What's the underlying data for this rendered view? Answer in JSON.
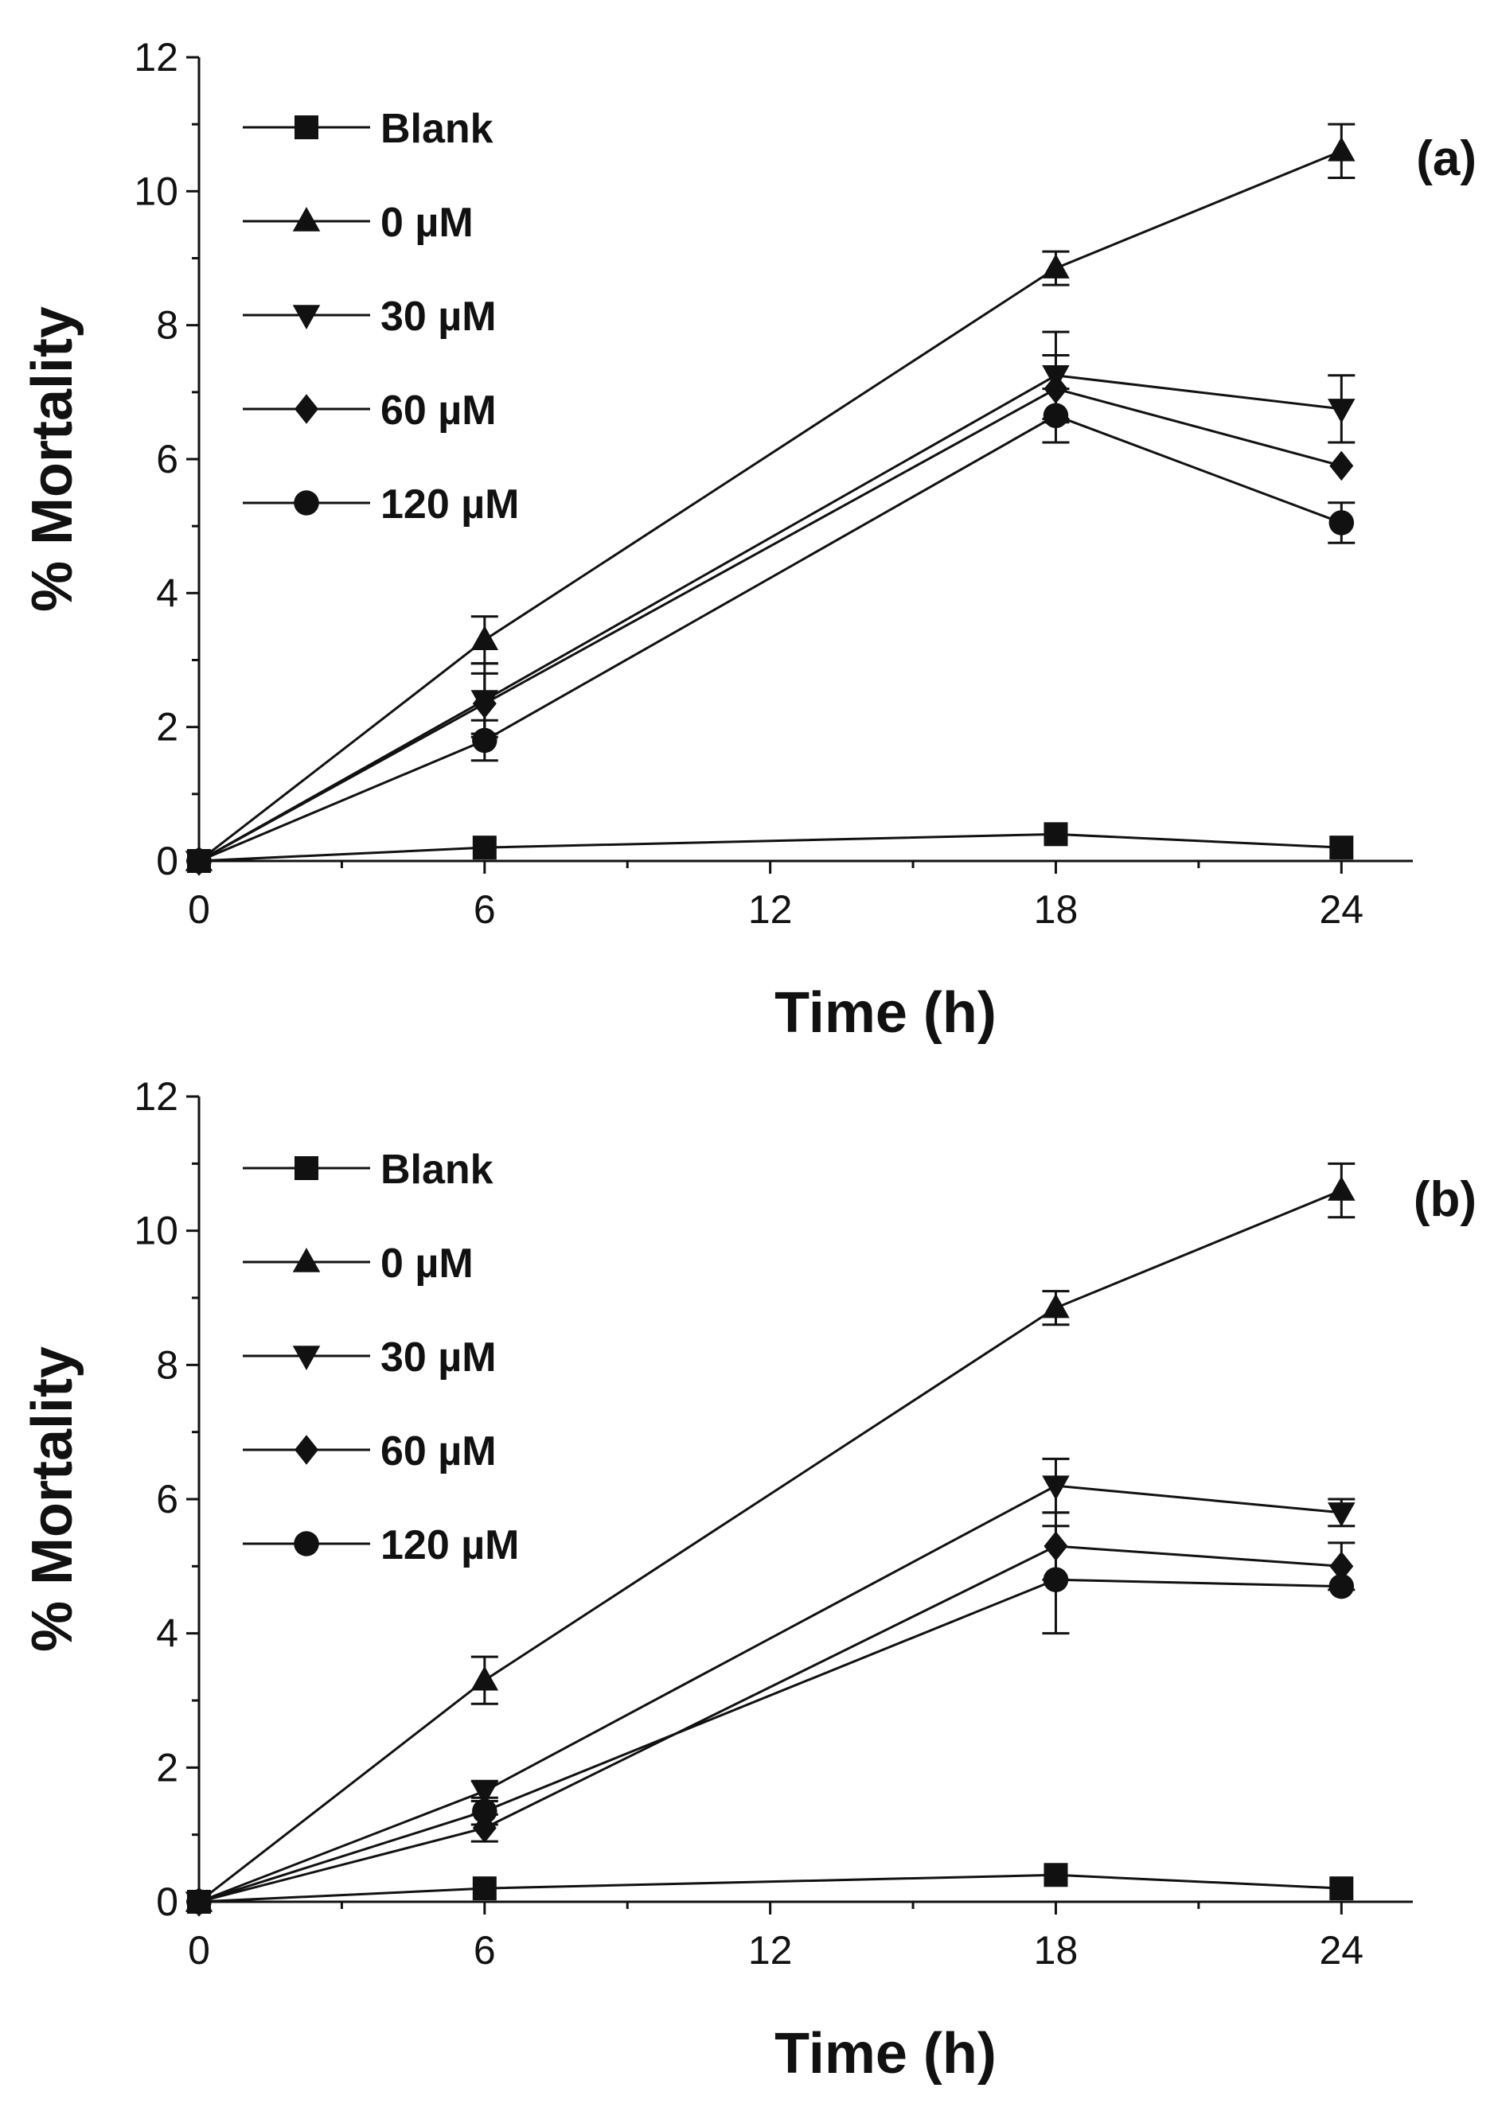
{
  "chart_data": [
    {
      "type": "line",
      "panel_label": "(a)",
      "xlabel": "Time (h)",
      "ylabel": "% Mortality",
      "x": [
        0,
        6,
        18,
        24
      ],
      "xlim": [
        0,
        25.5
      ],
      "ylim": [
        0,
        12
      ],
      "xticks": [
        "0",
        "6",
        "12",
        "18",
        "24"
      ],
      "yticks": [
        "0",
        "2",
        "4",
        "6",
        "8",
        "10",
        "12"
      ],
      "grid": false,
      "legend_position": "top-left",
      "series": [
        {
          "name": "Blank",
          "marker": "square",
          "values": [
            0,
            0.2,
            0.4,
            0.2
          ],
          "errors": [
            0,
            0,
            0,
            0
          ]
        },
        {
          "name": "0 µM",
          "marker": "triangle-up",
          "values": [
            0,
            3.3,
            8.85,
            10.6
          ],
          "errors": [
            0,
            0.35,
            0.25,
            0.4
          ]
        },
        {
          "name": "30 µM",
          "marker": "triangle-down",
          "values": [
            0,
            2.4,
            7.25,
            6.75
          ],
          "errors": [
            0,
            0.55,
            0.65,
            0.5
          ]
        },
        {
          "name": "60 µM",
          "marker": "diamond",
          "values": [
            0,
            2.35,
            7.05,
            5.9
          ],
          "errors": [
            0,
            0.45,
            0.5,
            0
          ]
        },
        {
          "name": "120 µM",
          "marker": "circle",
          "values": [
            0,
            1.8,
            6.65,
            5.05
          ],
          "errors": [
            0,
            0.3,
            0.4,
            0.3
          ]
        }
      ]
    },
    {
      "type": "line",
      "panel_label": "(b)",
      "xlabel": "Time (h)",
      "ylabel": "% Mortality",
      "x": [
        0,
        6,
        18,
        24
      ],
      "xlim": [
        0,
        25.5
      ],
      "ylim": [
        0,
        12
      ],
      "xticks": [
        "0",
        "6",
        "12",
        "18",
        "24"
      ],
      "yticks": [
        "0",
        "2",
        "4",
        "6",
        "8",
        "10",
        "12"
      ],
      "grid": false,
      "legend_position": "top-left",
      "series": [
        {
          "name": "Blank",
          "marker": "square",
          "values": [
            0,
            0.2,
            0.4,
            0.2
          ],
          "errors": [
            0,
            0,
            0,
            0
          ]
        },
        {
          "name": "0 µM",
          "marker": "triangle-up",
          "values": [
            0,
            3.3,
            8.85,
            10.6
          ],
          "errors": [
            0,
            0.35,
            0.25,
            0.4
          ]
        },
        {
          "name": "30 µM",
          "marker": "triangle-down",
          "values": [
            0,
            1.65,
            6.2,
            5.8
          ],
          "errors": [
            0,
            0.15,
            0.4,
            0.2
          ]
        },
        {
          "name": "60 µM",
          "marker": "diamond",
          "values": [
            0,
            1.1,
            5.3,
            5.0
          ],
          "errors": [
            0,
            0.2,
            0.5,
            0.35
          ]
        },
        {
          "name": "120 µM",
          "marker": "circle",
          "values": [
            0,
            1.35,
            4.8,
            4.7
          ],
          "errors": [
            0,
            0.2,
            0.8,
            0
          ]
        }
      ]
    }
  ]
}
